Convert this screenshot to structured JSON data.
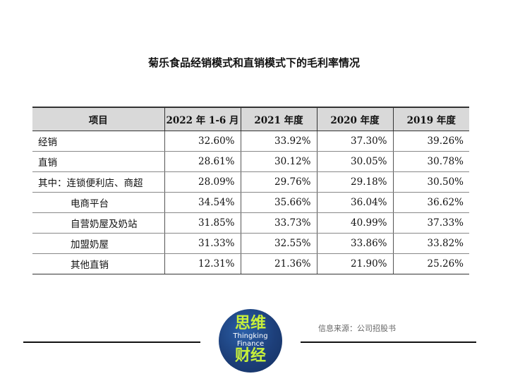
{
  "title": "菊乐食品经销模式和直销模式下的毛利率情况",
  "table": {
    "headers": [
      "项目",
      "2022 年 1-6 月",
      "2021 年度",
      "2020 年度",
      "2019 年度"
    ],
    "rows": [
      {
        "label": "经销",
        "values": [
          "32.60%",
          "33.92%",
          "37.30%",
          "39.26%"
        ]
      },
      {
        "label": "直销",
        "values": [
          "28.61%",
          "30.12%",
          "30.05%",
          "30.78%"
        ]
      },
      {
        "label": "其中：连锁便利店、商超",
        "values": [
          "28.09%",
          "29.76%",
          "29.18%",
          "30.50%"
        ]
      },
      {
        "label": "电商平台",
        "values": [
          "34.54%",
          "35.66%",
          "36.04%",
          "36.62%"
        ]
      },
      {
        "label": "自营奶屋及奶站",
        "values": [
          "31.85%",
          "33.73%",
          "40.99%",
          "37.33%"
        ]
      },
      {
        "label": "加盟奶屋",
        "values": [
          "31.33%",
          "32.55%",
          "33.86%",
          "33.82%"
        ]
      },
      {
        "label": "其他直销",
        "values": [
          "12.31%",
          "21.36%",
          "21.90%",
          "25.26%"
        ]
      }
    ]
  },
  "logo": {
    "top": "思维",
    "en1": "Thingking",
    "en2": "Finance",
    "bottom": "财经"
  },
  "source": "信息来源：公司招股书",
  "colors": {
    "header_bg": "#d9d9d9",
    "logo_text": "#c8f03a",
    "logo_bg": "#1d3f7a"
  }
}
